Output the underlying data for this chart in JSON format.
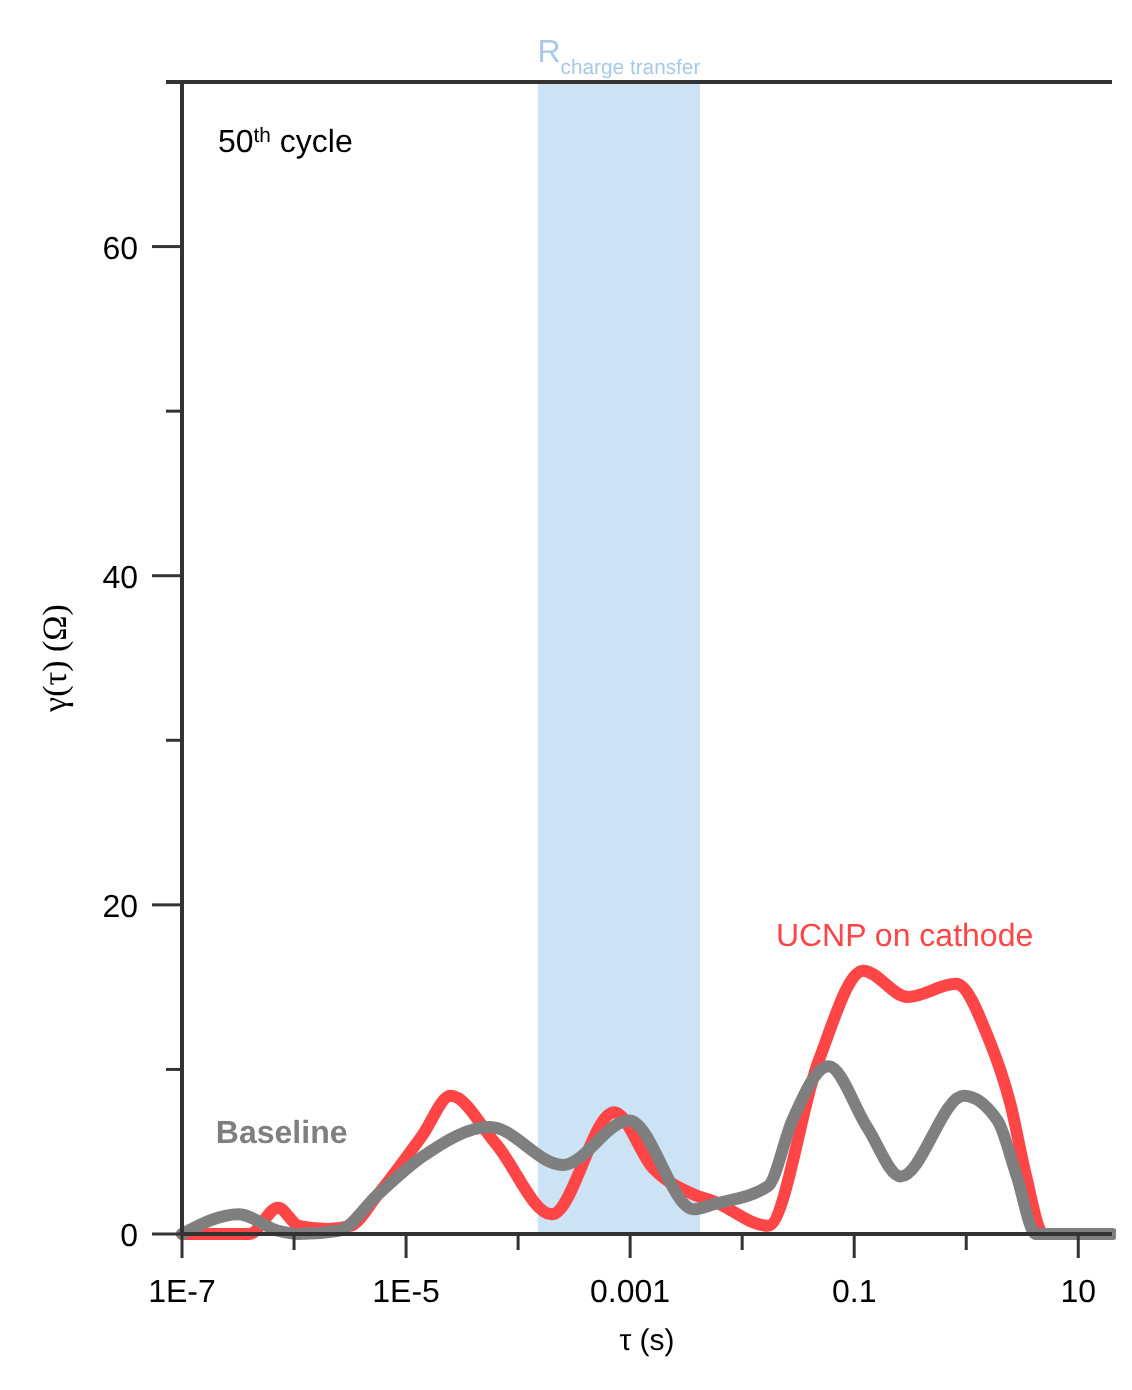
{
  "chart_data": {
    "type": "line",
    "xlabel": "τ (s)",
    "ylabel": "γ(τ) (Ω)",
    "log": "x",
    "xlim": [
      1e-07,
      20
    ],
    "ylim": [
      0,
      70
    ],
    "xticks": [
      {
        "value": 1e-07,
        "label": "1E-7"
      },
      {
        "value": 1e-06,
        "label": null
      },
      {
        "value": 1e-05,
        "label": "1E-5"
      },
      {
        "value": 0.0001,
        "label": null
      },
      {
        "value": 0.001,
        "label": "0.001"
      },
      {
        "value": 0.01,
        "label": null
      },
      {
        "value": 0.1,
        "label": "0.1"
      },
      {
        "value": 1,
        "label": null
      },
      {
        "value": 10,
        "label": "10"
      }
    ],
    "yticks": [
      0,
      {
        "value": 10,
        "label": null
      },
      20,
      {
        "value": 30,
        "label": null
      },
      40,
      {
        "value": 50,
        "label": null
      },
      60
    ],
    "annotations": [
      "50$^{th}$ cycle"
    ],
    "bands": [
      {
        "axis": "x",
        "from": 0.00015,
        "to": 0.0042,
        "label": "R$_{charge transfer}$",
        "color": "#cce3f5"
      }
    ],
    "series": [
      {
        "name": "UCNP on cathode",
        "color": "#ff4545",
        "x": [
          1e-07,
          4e-07,
          7.2e-07,
          1.1e-06,
          2e-06,
          3.2e-06,
          5.6e-06,
          1.4e-05,
          2.5e-05,
          6.3e-05,
          0.0002,
          0.00072,
          0.0016,
          0.0037,
          0.0055,
          0.017,
          0.048,
          0.12,
          0.3,
          0.81,
          1.6,
          2.5,
          3.4,
          4.9,
          20
        ],
        "values": [
          0,
          0,
          1.6,
          0.5,
          0.3,
          0.5,
          2.4,
          6,
          8.4,
          5.5,
          1.2,
          7.4,
          4,
          2.4,
          2.0,
          0.5,
          10.5,
          16,
          14.4,
          15.2,
          11.8,
          7.8,
          3.6,
          0,
          0
        ]
      },
      {
        "name": "Baseline",
        "color": "#7f7f7f",
        "x": [
          1e-07,
          3.2e-07,
          7.2e-07,
          1.1e-06,
          2.5e-06,
          5.6e-06,
          1.4e-05,
          5.6e-05,
          0.00025,
          0.00098,
          0.0037,
          0.0055,
          0.017,
          0.028,
          0.059,
          0.13,
          0.26,
          0.95,
          1.9,
          2.8,
          4.2,
          20
        ],
        "values": [
          0,
          1.2,
          0.2,
          0,
          0.2,
          2.4,
          4.7,
          6.5,
          4.2,
          6.9,
          1.5,
          1.8,
          2.9,
          6.9,
          10.2,
          6.5,
          3.5,
          8.4,
          6.9,
          3.6,
          0,
          0
        ]
      }
    ]
  }
}
